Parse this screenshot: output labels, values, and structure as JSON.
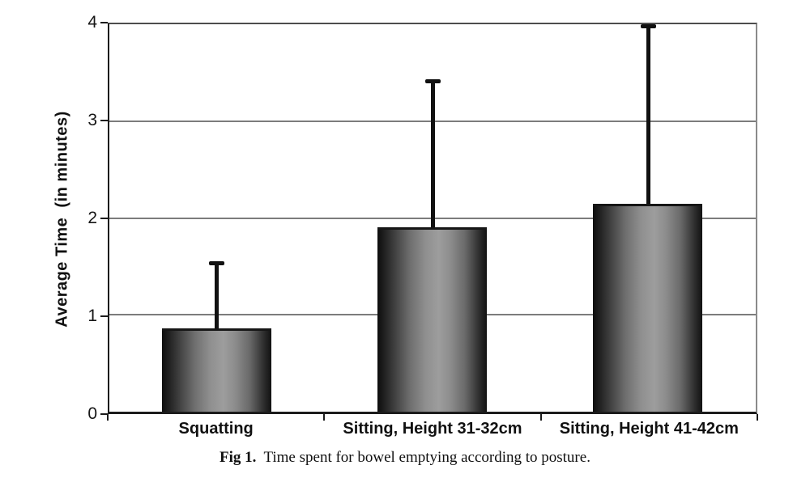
{
  "figure": {
    "caption_label": "Fig 1.",
    "caption_text": "Time spent for bowel emptying according to posture."
  },
  "chart_data": {
    "type": "bar",
    "title": "",
    "xlabel": "",
    "ylabel": "Average Time  (in minutes)",
    "ylim": [
      0,
      4
    ],
    "yticks": [
      0,
      1,
      2,
      3,
      4
    ],
    "grid": true,
    "legend_position": "none",
    "categories": [
      "Squatting",
      "Sitting, Height 31-32cm",
      "Sitting, Height 41-42cm"
    ],
    "values": [
      0.86,
      1.9,
      2.15
    ],
    "error_upper": [
      1.55,
      3.43,
      4.0
    ],
    "bar_width_fraction": 0.505,
    "colors": {
      "bar_edge": "#161616",
      "bar_mid": "#9a9a9a",
      "gridline": "#7c7c7c",
      "axis": "#1c1c1c",
      "error_bar": "#111111",
      "background": "#ffffff"
    }
  }
}
